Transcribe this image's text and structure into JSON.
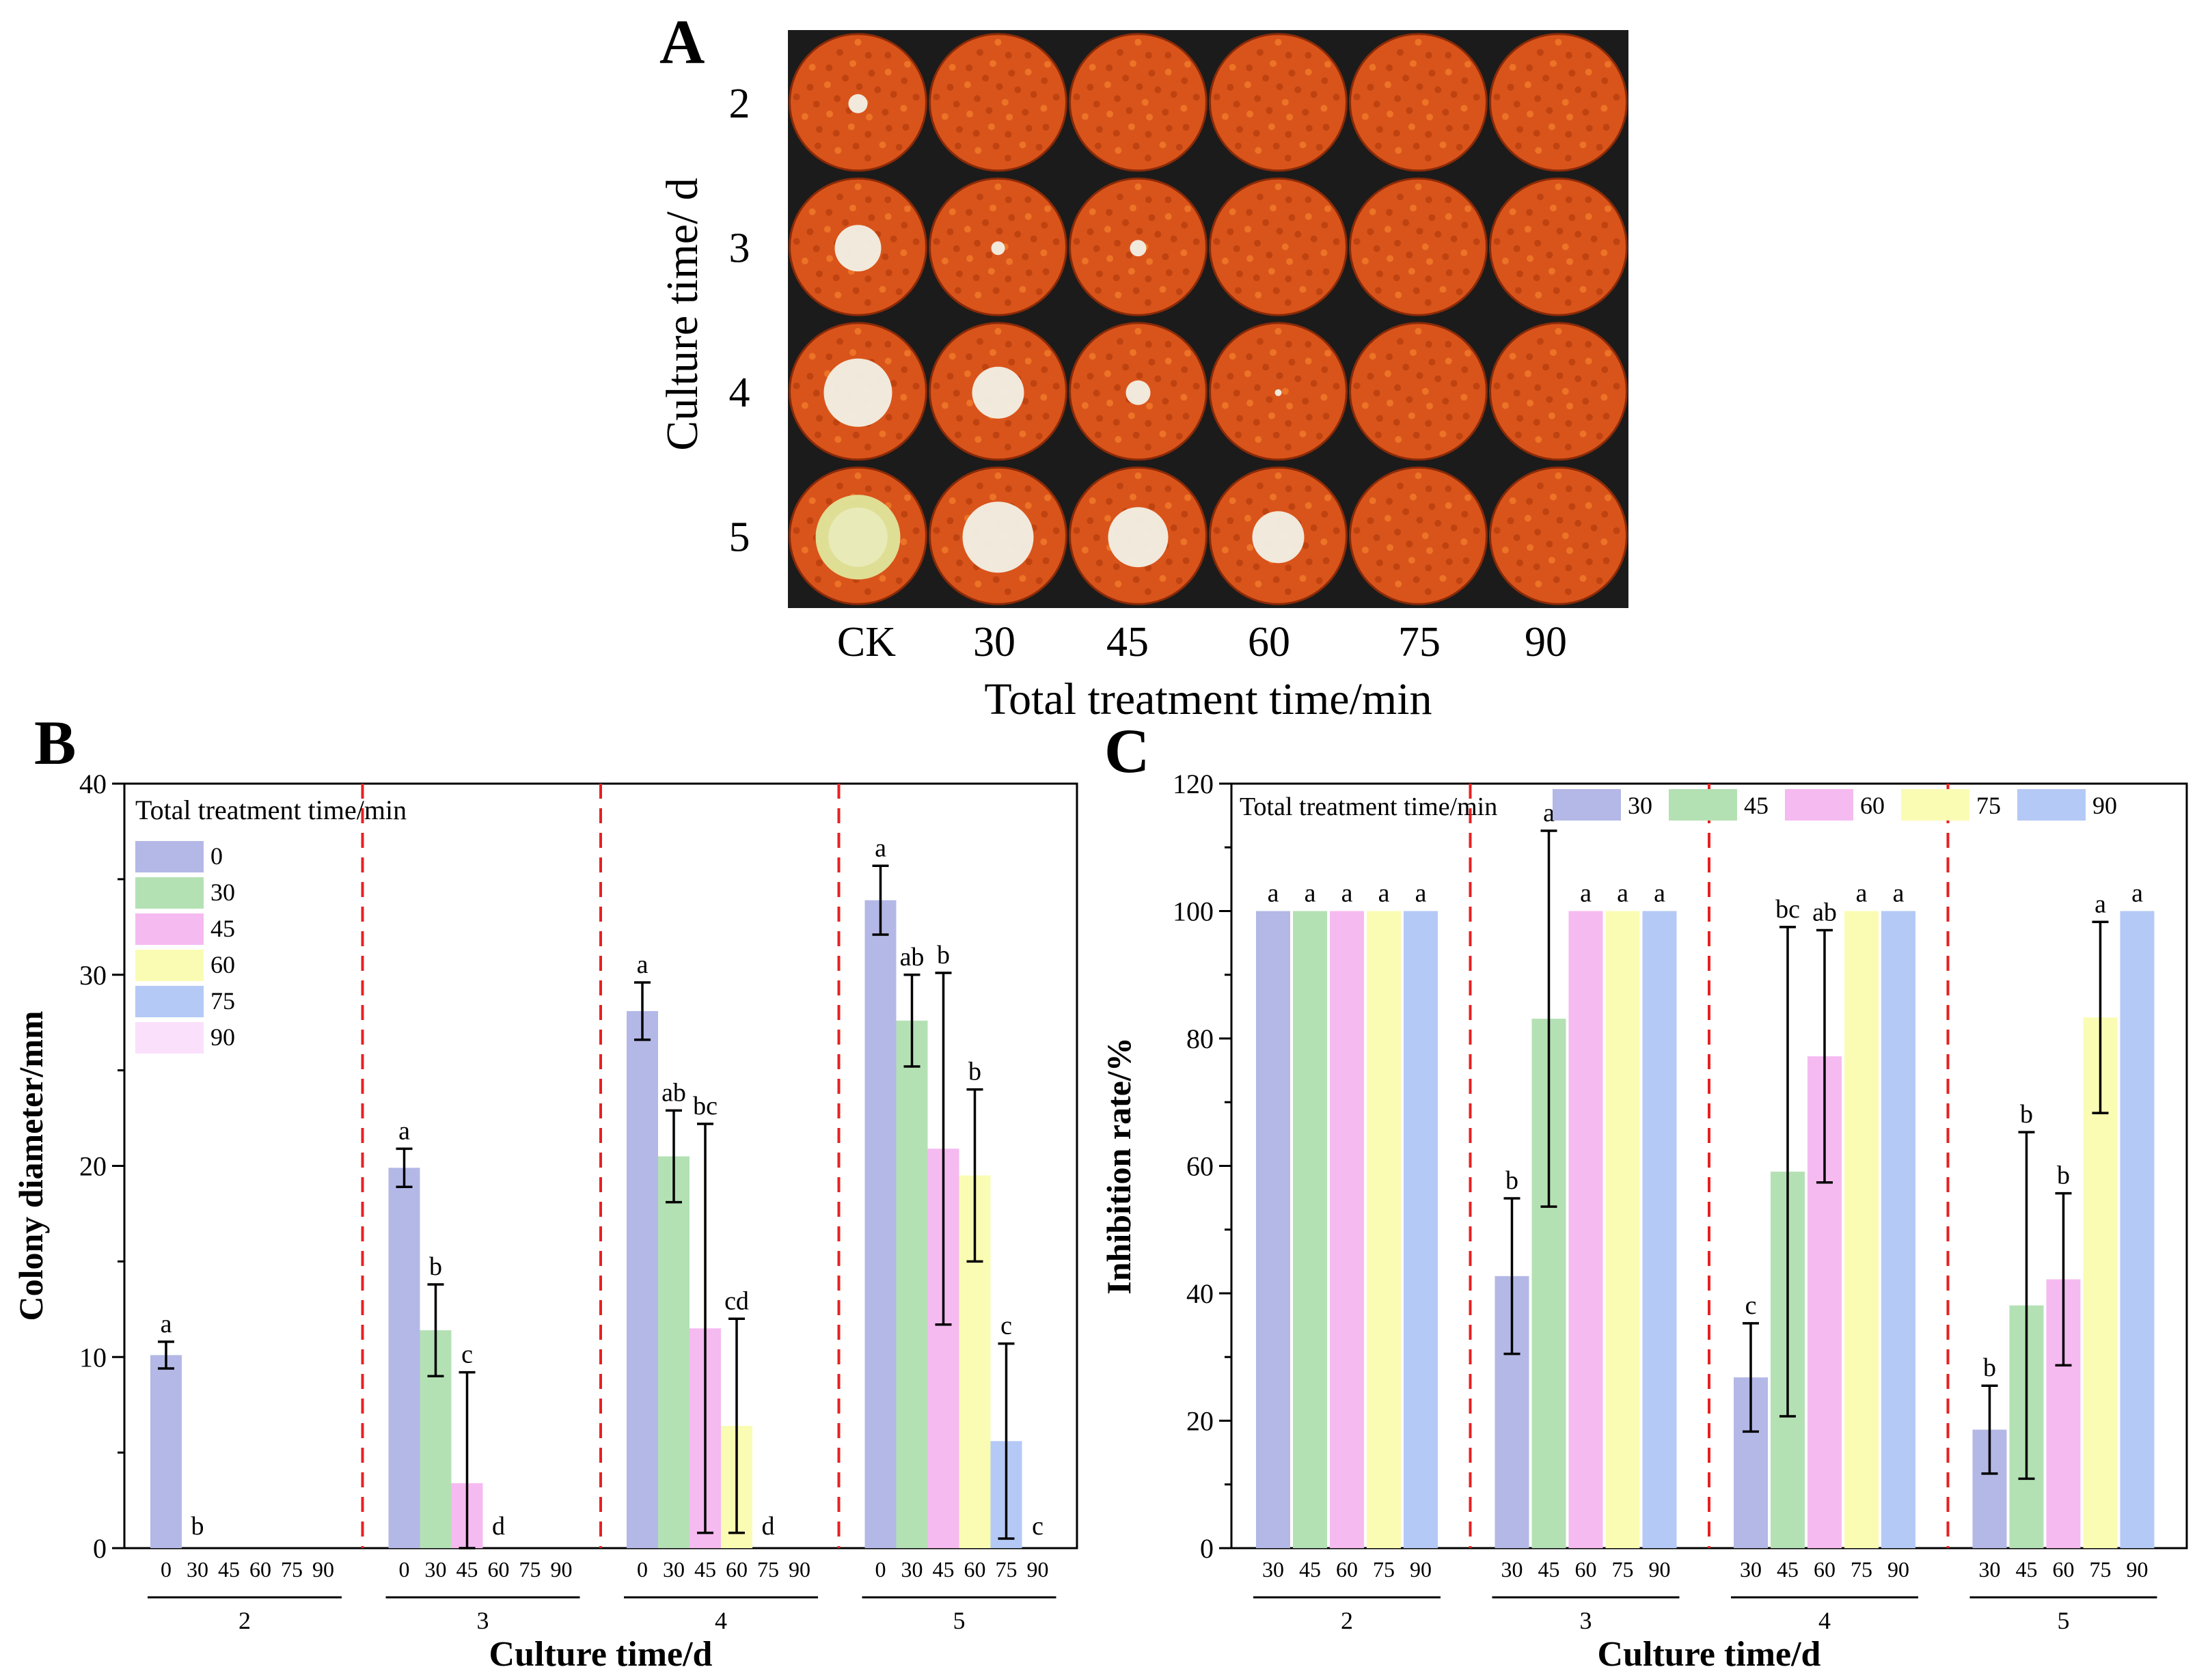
{
  "panel_a": {
    "letter": "A",
    "y_title": "Culture time/ d",
    "x_title": "Total treatment time/min",
    "rows": [
      "2",
      "3",
      "4",
      "5"
    ],
    "cols": [
      "CK",
      "30",
      "45",
      "60",
      "75",
      "90"
    ],
    "colony_relative_size": [
      [
        0.14,
        0,
        0,
        0,
        0,
        0
      ],
      [
        0.34,
        0.1,
        0.12,
        0,
        0,
        0
      ],
      [
        0.5,
        0.38,
        0.18,
        0.05,
        0,
        0
      ],
      [
        0.62,
        0.52,
        0.44,
        0.38,
        0,
        0
      ]
    ],
    "colors": {
      "dish": "#d9541b",
      "background": "#1b1b1b",
      "colony": "#f2eee2",
      "ck_day5_colony": "#dfe39a"
    }
  },
  "colors": {
    "s0": "#b3b8e6",
    "s30": "#b4e1b4",
    "s45": "#f5baf0",
    "s60": "#fafcb4",
    "s75": "#b4c9f5",
    "s90": "#fbe0fb",
    "divider": "#e82020",
    "axis": "#000000"
  },
  "chart_data": [
    {
      "type": "bar",
      "panel": "B",
      "title": "",
      "xlabel": "Culture time/d",
      "ylabel": "Colony diameter/mm",
      "ylim": [
        0,
        40
      ],
      "yticks": [
        "0",
        "10",
        "20",
        "30",
        "40"
      ],
      "legend_title": "Total treatment time/min",
      "legend_placement": "top-left",
      "groups": [
        "2",
        "3",
        "4",
        "5"
      ],
      "sub_labels": [
        "0",
        "30",
        "45",
        "60",
        "75",
        "90"
      ],
      "series": [
        {
          "name": "0",
          "color_key": "s0",
          "values": [
            10.1,
            19.9,
            28.1,
            33.9
          ],
          "err": [
            0.7,
            1.0,
            1.5,
            1.8
          ],
          "letters": [
            "a",
            "a",
            "a",
            "a"
          ]
        },
        {
          "name": "30",
          "color_key": "s30",
          "values": [
            0,
            11.4,
            20.5,
            27.6
          ],
          "err": [
            null,
            2.4,
            2.4,
            2.4
          ],
          "letters": [
            "b",
            "b",
            "ab",
            "ab"
          ]
        },
        {
          "name": "45",
          "color_key": "s45",
          "values": [
            0,
            3.4,
            11.5,
            20.9
          ],
          "err": [
            null,
            5.8,
            10.7,
            9.2
          ],
          "letters": [
            "",
            "c",
            "bc",
            "b"
          ]
        },
        {
          "name": "60",
          "color_key": "s60",
          "values": [
            0,
            0,
            6.4,
            19.5
          ],
          "err": [
            null,
            null,
            5.6,
            4.5
          ],
          "letters": [
            "",
            "d",
            "cd",
            "b"
          ]
        },
        {
          "name": "75",
          "color_key": "s75",
          "values": [
            0,
            0,
            0,
            5.6
          ],
          "err": [
            null,
            null,
            null,
            5.1
          ],
          "letters": [
            "",
            "",
            "d",
            "c"
          ]
        },
        {
          "name": "90",
          "color_key": "s90",
          "values": [
            0,
            0,
            0,
            0
          ],
          "err": [
            null,
            null,
            null,
            null
          ],
          "letters": [
            "",
            "",
            "",
            "c"
          ]
        }
      ]
    },
    {
      "type": "bar",
      "panel": "C",
      "title": "",
      "xlabel": "Culture time/d",
      "ylabel": "Inhibition rate/%",
      "ylim": [
        0,
        120
      ],
      "yticks": [
        "0",
        "20",
        "40",
        "60",
        "80",
        "100",
        "120"
      ],
      "legend_title": "Total treatment time/min",
      "legend_placement": "top",
      "groups": [
        "2",
        "3",
        "4",
        "5"
      ],
      "sub_labels": [
        "30",
        "45",
        "60",
        "75",
        "90"
      ],
      "series": [
        {
          "name": "30",
          "color_key": "s0",
          "values": [
            100,
            42.7,
            26.8,
            18.6
          ],
          "err": [
            null,
            12.2,
            8.5,
            6.9
          ],
          "letters": [
            "a",
            "b",
            "c",
            "b"
          ]
        },
        {
          "name": "45",
          "color_key": "s30",
          "values": [
            100,
            83.1,
            59.1,
            38.1
          ],
          "err": [
            null,
            29.5,
            38.4,
            27.2
          ],
          "letters": [
            "a",
            "a",
            "bc",
            "b"
          ]
        },
        {
          "name": "60",
          "color_key": "s45",
          "values": [
            100,
            100,
            77.2,
            42.2
          ],
          "err": [
            null,
            null,
            19.8,
            13.5
          ],
          "letters": [
            "a",
            "a",
            "ab",
            "b"
          ]
        },
        {
          "name": "75",
          "color_key": "s60",
          "values": [
            100,
            100,
            100,
            83.3
          ],
          "err": [
            null,
            null,
            null,
            15.0
          ],
          "letters": [
            "a",
            "a",
            "a",
            "a"
          ]
        },
        {
          "name": "90",
          "color_key": "s75",
          "values": [
            100,
            100,
            100,
            100
          ],
          "err": [
            null,
            null,
            null,
            null
          ],
          "letters": [
            "a",
            "a",
            "a",
            "a"
          ]
        }
      ]
    }
  ]
}
